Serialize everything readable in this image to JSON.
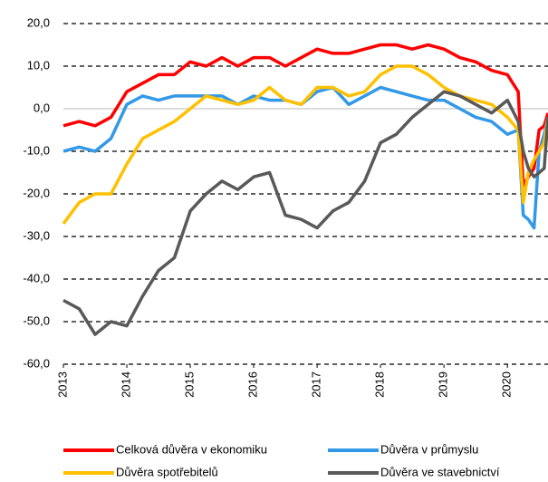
{
  "chart_data": {
    "type": "line",
    "x": [
      2013,
      2013.25,
      2013.5,
      2013.75,
      2014,
      2014.25,
      2014.5,
      2014.75,
      2015,
      2015.25,
      2015.5,
      2015.75,
      2016,
      2016.25,
      2016.5,
      2016.75,
      2017,
      2017.25,
      2017.5,
      2017.75,
      2018,
      2018.25,
      2018.5,
      2018.75,
      2019,
      2019.25,
      2019.5,
      2019.75,
      2020,
      2020.17,
      2020.25,
      2020.33,
      2020.42,
      2020.5,
      2020.58,
      2020.64
    ],
    "series": [
      {
        "name": "Celková důvěra v ekonomiku",
        "color": "#ff0000",
        "values": [
          -4,
          -3,
          -4,
          -2,
          4,
          6,
          8,
          8,
          11,
          10,
          12,
          10,
          12,
          12,
          10,
          12,
          14,
          13,
          13,
          14,
          15,
          15,
          14,
          15,
          14,
          12,
          11,
          9,
          8,
          4,
          -18,
          -16,
          -14,
          -5,
          -4,
          -1
        ]
      },
      {
        "name": "Důvěra v průmyslu",
        "color": "#3399e6",
        "values": [
          -10,
          -9,
          -10,
          -7,
          1,
          3,
          2,
          3,
          3,
          3,
          3,
          1,
          3,
          2,
          2,
          1,
          4,
          5,
          1,
          3,
          5,
          4,
          3,
          2,
          2,
          0,
          -2,
          -3,
          -6,
          -5,
          -25,
          -26,
          -28,
          -10,
          -6,
          -2
        ]
      },
      {
        "name": "Důvěra spotřebitelů",
        "color": "#ffc000",
        "values": [
          -27,
          -22,
          -20,
          -20,
          -13,
          -7,
          -5,
          -3,
          0,
          3,
          2,
          1,
          2,
          5,
          2,
          1,
          5,
          5,
          3,
          4,
          8,
          10,
          10,
          8,
          5,
          3,
          2,
          1,
          -2,
          -5,
          -22,
          -15,
          -12,
          -10,
          -8,
          -2
        ]
      },
      {
        "name": "Důvěra ve stavebnictví",
        "color": "#595959",
        "values": [
          -45,
          -47,
          -53,
          -50,
          -51,
          -44,
          -38,
          -35,
          -24,
          -20,
          -17,
          -19,
          -16,
          -15,
          -25,
          -26,
          -28,
          -24,
          -22,
          -17,
          -8,
          -6,
          -2,
          1,
          4,
          3,
          1,
          -1,
          2,
          -3,
          -10,
          -14,
          -16,
          -15,
          -14,
          -2
        ]
      }
    ],
    "xlim": [
      2013,
      2020.64
    ],
    "xticks": [
      2013,
      2014,
      2015,
      2016,
      2017,
      2018,
      2019,
      2020
    ],
    "ylim": [
      -60,
      20
    ],
    "yticks": [
      {
        "value": -60,
        "label": "-60,0"
      },
      {
        "value": -50,
        "label": "-50,0"
      },
      {
        "value": -40,
        "label": "-40,0"
      },
      {
        "value": -30,
        "label": "-30,0"
      },
      {
        "value": -20,
        "label": "-20,0"
      },
      {
        "value": -10,
        "label": "-10,0"
      },
      {
        "value": 0,
        "label": "0,0"
      },
      {
        "value": 10,
        "label": "10,0"
      },
      {
        "value": 20,
        "label": "20,0"
      }
    ],
    "grid": true
  }
}
